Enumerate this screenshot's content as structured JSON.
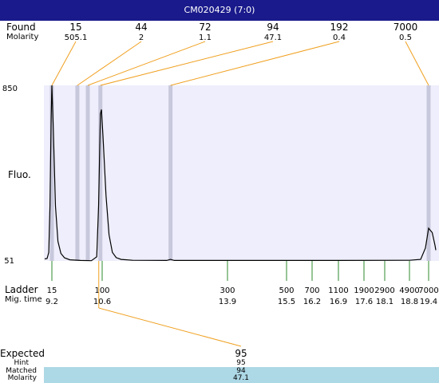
{
  "title": "CM020429 (7:0)",
  "labels": {
    "found": "Found",
    "molarity": "Molarity",
    "fluo": "Fluo.",
    "ladder": "Ladder",
    "mig_time": "Mig. time",
    "expected": "Expected",
    "hint": "Hint",
    "matched": "Matched",
    "molarity_bottom": "Molarity"
  },
  "chart_data": {
    "type": "line",
    "y_range": [
      51,
      850
    ],
    "y_ticks": [
      "850",
      "51"
    ],
    "ylabel": "Fluo.",
    "x_range_mig_time": [
      8.9,
      19.6
    ],
    "found": [
      {
        "size": "15",
        "molarity": "505.1",
        "mig_time": 9.2
      },
      {
        "size": "44",
        "molarity": "2",
        "mig_time": 9.91
      },
      {
        "size": "72",
        "molarity": "1.1",
        "mig_time": 10.2
      },
      {
        "size": "94",
        "molarity": "47.1",
        "mig_time": 10.55
      },
      {
        "size": "192",
        "molarity": "0.4",
        "mig_time": 12.4
      },
      {
        "size": "7000",
        "molarity": "0.5",
        "mig_time": 19.4
      }
    ],
    "ladder": [
      {
        "size": "15",
        "mig_time": "9.2"
      },
      {
        "size": "100",
        "mig_time": "10.6"
      },
      {
        "size": "300",
        "mig_time": "13.9"
      },
      {
        "size": "500",
        "mig_time": "15.5"
      },
      {
        "size": "700",
        "mig_time": "16.2"
      },
      {
        "size": "1100",
        "mig_time": "16.9"
      },
      {
        "size": "1900",
        "mig_time": "17.6"
      },
      {
        "size": "2900",
        "mig_time": "18.1"
      },
      {
        "size": "4900",
        "mig_time": "18.8"
      },
      {
        "size": "7000",
        "mig_time": "19.4"
      }
    ],
    "trace": [
      [
        8.9,
        60
      ],
      [
        9.0,
        62
      ],
      [
        9.07,
        90
      ],
      [
        9.12,
        300
      ],
      [
        9.17,
        700
      ],
      [
        9.2,
        850
      ],
      [
        9.24,
        650
      ],
      [
        9.3,
        300
      ],
      [
        9.37,
        140
      ],
      [
        9.45,
        85
      ],
      [
        9.55,
        65
      ],
      [
        9.7,
        56
      ],
      [
        10.0,
        53
      ],
      [
        10.3,
        52
      ],
      [
        10.45,
        70
      ],
      [
        10.5,
        300
      ],
      [
        10.55,
        720
      ],
      [
        10.58,
        740
      ],
      [
        10.62,
        620
      ],
      [
        10.7,
        350
      ],
      [
        10.78,
        170
      ],
      [
        10.87,
        90
      ],
      [
        10.97,
        66
      ],
      [
        11.1,
        58
      ],
      [
        11.4,
        54
      ],
      [
        12.3,
        53
      ],
      [
        12.4,
        58
      ],
      [
        12.5,
        53
      ],
      [
        14.0,
        53
      ],
      [
        17.0,
        53
      ],
      [
        18.8,
        54
      ],
      [
        19.15,
        58
      ],
      [
        19.3,
        110
      ],
      [
        19.4,
        200
      ],
      [
        19.5,
        180
      ],
      [
        19.58,
        120
      ],
      [
        19.6,
        100
      ]
    ],
    "expected": {
      "value": "95",
      "hint": "95",
      "matched": "94",
      "molarity": "47.1",
      "mig_time": 10.55
    },
    "colors": {
      "title_bar": "#1a1a8c",
      "plot_bg": "#eeeefc",
      "band": "#c8c8dc",
      "link": "#f0a020",
      "ladder_tick": "#2e8b2e",
      "matched_row": "#add8e6"
    }
  }
}
